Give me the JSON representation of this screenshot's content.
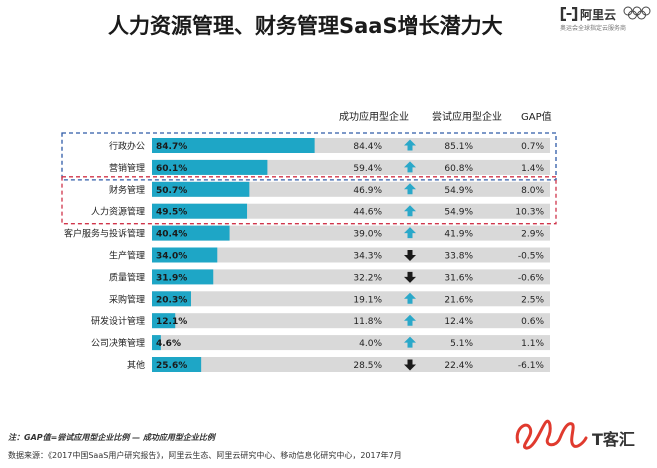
{
  "title": "人力资源管理、财务管理SaaS增长潜力大",
  "brand": {
    "name": "阿里云",
    "subtitle": "奥运会全球指定云服务商",
    "logo_icon": "aliyun-logo-icon",
    "rings_icon": "olympic-rings-icon"
  },
  "column_headers": {
    "success": "成功应用型企业",
    "trial": "尝试应用型企业",
    "gap": "GAP值"
  },
  "colors": {
    "bar": "#1ea6c6",
    "track": "#d9d9d9",
    "up_arrow": "#2aa8c9",
    "down_arrow": "#1a1a1a",
    "blue_box": "#2e5aa7",
    "red_box": "#d0344a"
  },
  "chart_data": {
    "type": "bar",
    "orientation": "horizontal",
    "xlim": [
      0,
      100
    ],
    "categories": [
      "行政办公",
      "营销管理",
      "财务管理",
      "人力资源管理",
      "客户服务与投诉管理",
      "生产管理",
      "质量管理",
      "采购管理",
      "研发设计管理",
      "公司决策管理",
      "其他"
    ],
    "values": [
      84.7,
      60.1,
      50.7,
      49.5,
      40.4,
      34.0,
      31.9,
      20.3,
      12.1,
      4.6,
      25.6
    ],
    "value_labels": [
      "84.7%",
      "60.1%",
      "50.7%",
      "49.5%",
      "40.4%",
      "34.0%",
      "31.9%",
      "20.3%",
      "12.1%",
      "4.6%",
      "25.6%"
    ],
    "success": [
      "84.4%",
      "59.4%",
      "46.9%",
      "44.6%",
      "39.0%",
      "34.3%",
      "32.2%",
      "19.1%",
      "11.8%",
      "4.0%",
      "28.5%"
    ],
    "trial": [
      "85.1%",
      "60.8%",
      "54.9%",
      "54.9%",
      "41.9%",
      "33.8%",
      "31.6%",
      "21.6%",
      "12.4%",
      "5.1%",
      "22.4%"
    ],
    "gap": [
      "0.7%",
      "1.4%",
      "8.0%",
      "10.3%",
      "2.9%",
      "-0.5%",
      "-0.6%",
      "2.5%",
      "0.6%",
      "1.1%",
      "-6.1%"
    ],
    "trend": [
      "up",
      "up",
      "up",
      "up",
      "up",
      "down",
      "down",
      "up",
      "up",
      "up",
      "down"
    ],
    "highlight_blue": [
      "行政办公",
      "营销管理"
    ],
    "highlight_red": [
      "财务管理",
      "人力资源管理"
    ]
  },
  "notes": {
    "gap_note": "注：GAP值=尝试应用型企业比例 — 成功应用型企业比例",
    "source": "数据来源：《2017中国SaaS用户研究报告》，阿里云生态、阿里云研究中心、移动信息化研究中心，2017年7月"
  },
  "watermark": {
    "text": "T客汇",
    "logo": "tkehui-logo-icon"
  }
}
